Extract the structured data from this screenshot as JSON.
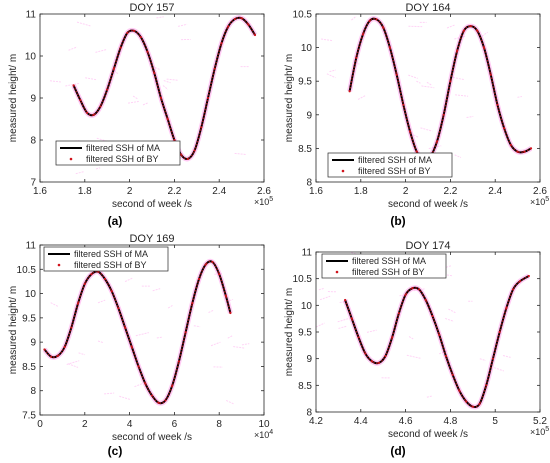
{
  "panel_labels": [
    "(a)",
    "(b)",
    "(c)",
    "(d)"
  ],
  "colors": {
    "ma_line": "#000000",
    "by_points": "#d0131b",
    "artifact": "#ff66e0",
    "axis": "#262626",
    "grid": "#ffffff"
  },
  "chart_data": [
    {
      "type": "line",
      "title": "DOY 157",
      "xlabel": "second of week /s",
      "ylabel": "measured height/ m",
      "x_exponent": "×10",
      "x_exponent_power": "5",
      "xlim": [
        1.6,
        2.6
      ],
      "ylim": [
        7,
        11
      ],
      "xticks": [
        1.6,
        1.8,
        2.0,
        2.2,
        2.4,
        2.6
      ],
      "xtick_labels": [
        "1.6",
        "1.8",
        "2",
        "2.2",
        "2.4",
        "2.6"
      ],
      "yticks": [
        7,
        8,
        9,
        10,
        11
      ],
      "ytick_labels": [
        "7",
        "8",
        "9",
        "10",
        "11"
      ],
      "legend_position": "bottom-left",
      "series": [
        {
          "name": "filtered SSH of MA",
          "style": "line",
          "x": [
            1.75,
            1.78,
            1.81,
            1.84,
            1.87,
            1.9,
            1.93,
            1.96,
            1.99,
            2.02,
            2.05,
            2.08,
            2.11,
            2.14,
            2.17,
            2.2,
            2.23,
            2.26,
            2.29,
            2.32,
            2.35,
            2.38,
            2.41,
            2.44,
            2.47,
            2.5,
            2.53,
            2.56
          ],
          "y": [
            9.3,
            8.95,
            8.65,
            8.6,
            8.8,
            9.2,
            9.7,
            10.2,
            10.55,
            10.6,
            10.45,
            10.1,
            9.6,
            9.0,
            8.5,
            8.0,
            7.65,
            7.55,
            7.75,
            8.3,
            9.0,
            9.7,
            10.3,
            10.7,
            10.88,
            10.9,
            10.75,
            10.5
          ]
        },
        {
          "name": "filtered SSH of BY",
          "style": "points",
          "x": [
            1.75,
            1.78,
            1.81,
            1.84,
            1.87,
            1.9,
            1.93,
            1.96,
            1.99,
            2.02,
            2.05,
            2.08,
            2.11,
            2.14,
            2.17,
            2.2,
            2.23,
            2.26,
            2.29,
            2.32,
            2.35,
            2.38,
            2.41,
            2.44,
            2.47,
            2.5,
            2.53,
            2.56
          ],
          "y": [
            9.3,
            8.95,
            8.65,
            8.6,
            8.8,
            9.2,
            9.7,
            10.2,
            10.55,
            10.6,
            10.45,
            10.1,
            9.6,
            9.0,
            8.5,
            8.0,
            7.65,
            7.55,
            7.75,
            8.3,
            9.0,
            9.7,
            10.3,
            10.7,
            10.88,
            10.9,
            10.75,
            10.5
          ]
        }
      ]
    },
    {
      "type": "line",
      "title": "DOY 164",
      "xlabel": "second of week /s",
      "ylabel": "measured height/ m",
      "x_exponent": "×10",
      "x_exponent_power": "5",
      "xlim": [
        1.6,
        2.6
      ],
      "ylim": [
        8,
        10.5
      ],
      "xticks": [
        1.6,
        1.8,
        2.0,
        2.2,
        2.4,
        2.6
      ],
      "xtick_labels": [
        "1.6",
        "1.8",
        "2",
        "2.2",
        "2.4",
        "2.6"
      ],
      "yticks": [
        8,
        8.5,
        9,
        9.5,
        10,
        10.5
      ],
      "ytick_labels": [
        "8",
        "8.5",
        "9",
        "9.5",
        "10",
        "10.5"
      ],
      "legend_position": "bottom-right",
      "series": [
        {
          "name": "filtered SSH of MA",
          "style": "line",
          "x": [
            1.75,
            1.78,
            1.81,
            1.84,
            1.87,
            1.9,
            1.93,
            1.96,
            1.99,
            2.02,
            2.05,
            2.08,
            2.11,
            2.14,
            2.17,
            2.2,
            2.23,
            2.26,
            2.29,
            2.32,
            2.35,
            2.38,
            2.41,
            2.44,
            2.47,
            2.5,
            2.53,
            2.56
          ],
          "y": [
            9.35,
            9.85,
            10.2,
            10.4,
            10.42,
            10.3,
            10.0,
            9.6,
            9.15,
            8.75,
            8.45,
            8.35,
            8.38,
            8.6,
            9.0,
            9.5,
            9.95,
            10.25,
            10.32,
            10.25,
            10.0,
            9.6,
            9.15,
            8.8,
            8.55,
            8.45,
            8.45,
            8.5
          ]
        },
        {
          "name": "filtered SSH of BY",
          "style": "points",
          "x": [
            1.75,
            1.78,
            1.81,
            1.84,
            1.87,
            1.9,
            1.93,
            1.96,
            1.99,
            2.02,
            2.05,
            2.08,
            2.11,
            2.14,
            2.17,
            2.2,
            2.23,
            2.26,
            2.29,
            2.32,
            2.35,
            2.38,
            2.41,
            2.44,
            2.47,
            2.5,
            2.53,
            2.56
          ],
          "y": [
            9.35,
            9.85,
            10.2,
            10.4,
            10.42,
            10.3,
            10.0,
            9.6,
            9.15,
            8.75,
            8.45,
            8.35,
            8.38,
            8.6,
            9.0,
            9.5,
            9.95,
            10.25,
            10.32,
            10.25,
            10.0,
            9.6,
            9.15,
            8.8,
            8.55,
            8.45,
            8.45,
            8.5
          ]
        }
      ]
    },
    {
      "type": "line",
      "title": "DOY 169",
      "xlabel": "second of week /s",
      "ylabel": "measured height/ m",
      "x_exponent": "×10",
      "x_exponent_power": "4",
      "xlim": [
        0,
        10
      ],
      "ylim": [
        7.5,
        11
      ],
      "xticks": [
        0,
        2,
        4,
        6,
        8,
        10
      ],
      "xtick_labels": [
        "0",
        "2",
        "4",
        "6",
        "8",
        "10"
      ],
      "yticks": [
        7.5,
        8,
        8.5,
        9,
        9.5,
        10,
        10.5,
        11
      ],
      "ytick_labels": [
        "7.5",
        "8",
        "8.5",
        "9",
        "9.5",
        "10",
        "10.5",
        "11"
      ],
      "legend_position": "top-left",
      "series": [
        {
          "name": "filtered SSH of MA",
          "style": "line",
          "x": [
            0.2,
            0.5,
            0.8,
            1.1,
            1.4,
            1.7,
            2.0,
            2.3,
            2.6,
            2.9,
            3.2,
            3.5,
            3.8,
            4.1,
            4.4,
            4.7,
            5.0,
            5.3,
            5.6,
            5.9,
            6.2,
            6.5,
            6.8,
            7.1,
            7.4,
            7.7,
            8.0,
            8.3,
            8.5
          ],
          "y": [
            8.85,
            8.7,
            8.72,
            8.9,
            9.3,
            9.8,
            10.2,
            10.4,
            10.45,
            10.3,
            10.05,
            9.7,
            9.3,
            8.9,
            8.5,
            8.15,
            7.9,
            7.75,
            7.8,
            8.1,
            8.6,
            9.2,
            9.8,
            10.3,
            10.6,
            10.65,
            10.4,
            9.95,
            9.6
          ]
        },
        {
          "name": "filtered SSH of BY",
          "style": "points",
          "x": [
            0.2,
            0.5,
            0.8,
            1.1,
            1.4,
            1.7,
            2.0,
            2.3,
            2.6,
            2.9,
            3.2,
            3.5,
            3.8,
            4.1,
            4.4,
            4.7,
            5.0,
            5.3,
            5.6,
            5.9,
            6.2,
            6.5,
            6.8,
            7.1,
            7.4,
            7.7,
            8.0,
            8.3,
            8.5
          ],
          "y": [
            8.85,
            8.7,
            8.72,
            8.9,
            9.3,
            9.8,
            10.2,
            10.4,
            10.45,
            10.3,
            10.05,
            9.7,
            9.3,
            8.9,
            8.5,
            8.15,
            7.9,
            7.75,
            7.8,
            8.1,
            8.6,
            9.2,
            9.8,
            10.3,
            10.6,
            10.65,
            10.4,
            9.95,
            9.6
          ]
        }
      ]
    },
    {
      "type": "line",
      "title": "DOY 174",
      "xlabel": "second of week /s",
      "ylabel": "measured height/ m",
      "x_exponent": "×10",
      "x_exponent_power": "5",
      "xlim": [
        4.2,
        5.2
      ],
      "ylim": [
        8,
        11
      ],
      "xticks": [
        4.2,
        4.4,
        4.6,
        4.8,
        5.0,
        5.2
      ],
      "xtick_labels": [
        "4.2",
        "4.4",
        "4.6",
        "4.8",
        "5",
        "5.2"
      ],
      "yticks": [
        8,
        8.5,
        9,
        9.5,
        10,
        10.5,
        11
      ],
      "ytick_labels": [
        "8",
        "8.5",
        "9",
        "9.5",
        "10",
        "10.5",
        "11"
      ],
      "legend_position": "top-left",
      "series": [
        {
          "name": "filtered SSH of MA",
          "style": "line",
          "x": [
            4.33,
            4.36,
            4.39,
            4.42,
            4.45,
            4.48,
            4.51,
            4.54,
            4.57,
            4.6,
            4.63,
            4.66,
            4.69,
            4.72,
            4.75,
            4.78,
            4.81,
            4.84,
            4.87,
            4.9,
            4.93,
            4.96,
            4.99,
            5.02,
            5.05,
            5.08,
            5.11,
            5.15
          ],
          "y": [
            10.1,
            9.75,
            9.4,
            9.1,
            8.95,
            8.92,
            9.05,
            9.4,
            9.85,
            10.2,
            10.32,
            10.3,
            10.1,
            9.8,
            9.45,
            9.05,
            8.7,
            8.4,
            8.2,
            8.1,
            8.15,
            8.5,
            9.0,
            9.5,
            9.95,
            10.3,
            10.45,
            10.55
          ]
        },
        {
          "name": "filtered SSH of BY",
          "style": "points",
          "x": [
            4.33,
            4.36,
            4.39,
            4.42,
            4.45,
            4.48,
            4.51,
            4.54,
            4.57,
            4.6,
            4.63,
            4.66,
            4.69,
            4.72,
            4.75,
            4.78,
            4.81,
            4.84,
            4.87,
            4.9,
            4.93,
            4.96,
            4.99,
            5.02,
            5.05,
            5.08,
            5.11,
            5.15
          ],
          "y": [
            10.1,
            9.75,
            9.4,
            9.1,
            8.95,
            8.92,
            9.05,
            9.4,
            9.85,
            10.2,
            10.32,
            10.3,
            10.1,
            9.8,
            9.45,
            9.05,
            8.7,
            8.4,
            8.2,
            8.1,
            8.15,
            8.5,
            9.0,
            9.5,
            9.95,
            10.3,
            10.45,
            10.55
          ]
        }
      ]
    }
  ]
}
